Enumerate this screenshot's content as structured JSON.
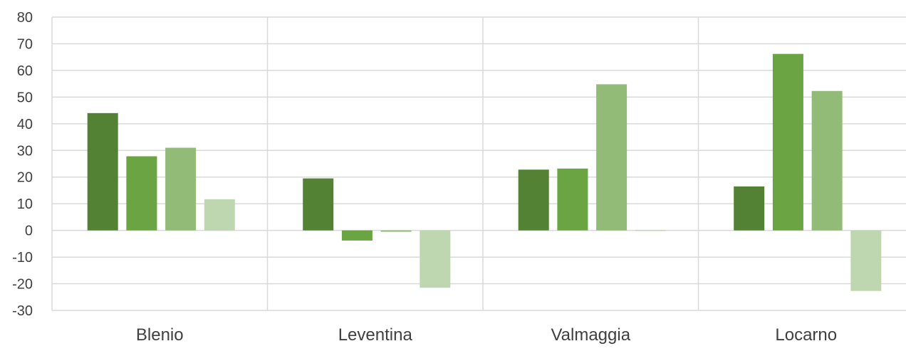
{
  "chart_data": {
    "type": "bar",
    "categories": [
      "Blenio",
      "Leventina",
      "Valmaggia",
      "Locarno"
    ],
    "series": [
      {
        "values": [
          44,
          19.5,
          22.8,
          16.5
        ],
        "color": "#548235"
      },
      {
        "values": [
          27.8,
          -3.8,
          23.2,
          66.2
        ],
        "color": "#6aa443"
      },
      {
        "values": [
          31,
          -0.5,
          54.8,
          52.3
        ],
        "color": "#92bb78"
      },
      {
        "values": [
          11.7,
          -21.5,
          0,
          -22.7
        ],
        "color": "#bfd7b0"
      }
    ],
    "ylim": [
      -30,
      80
    ],
    "yticks": [
      "80",
      "70",
      "60",
      "50",
      "40",
      "30",
      "20",
      "10",
      "0",
      "-10",
      "-20",
      "-30"
    ],
    "grid": true,
    "legend": "none"
  }
}
